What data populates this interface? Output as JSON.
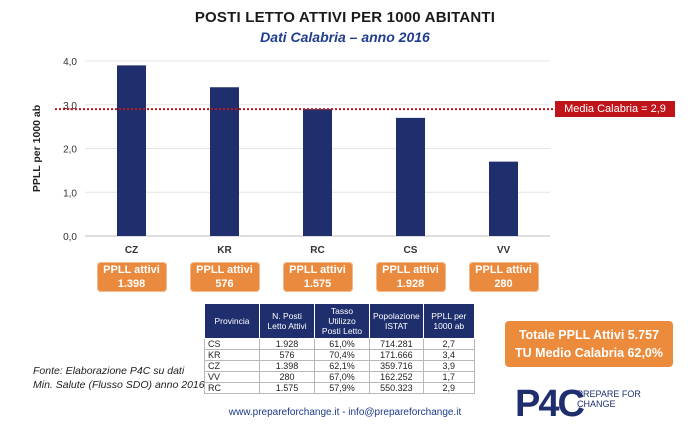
{
  "chart_data": {
    "type": "bar",
    "title": "POSTI LETTO ATTIVI PER 1000 ABITANTI",
    "subtitle": "Dati Calabria – anno 2016",
    "ylabel": "PPLL per 1000 ab",
    "categories": [
      "CZ",
      "KR",
      "RC",
      "CS",
      "VV"
    ],
    "values": [
      3.9,
      3.4,
      2.9,
      2.7,
      1.7
    ],
    "ylim": [
      0,
      4
    ],
    "yticks": [
      "0,0",
      "1,0",
      "2,0",
      "3,0",
      "4,0"
    ],
    "reference_line": {
      "value": 2.9,
      "label": "Media Calabria = 2,9"
    },
    "grid": true,
    "bar_color": "#1f2f6e",
    "reference_color": "#c0141b"
  },
  "pills": [
    {
      "label": "PPLL attivi",
      "value": "1.398"
    },
    {
      "label": "PPLL attivi",
      "value": "576"
    },
    {
      "label": "PPLL attivi",
      "value": "1.575"
    },
    {
      "label": "PPLL attivi",
      "value": "1.928"
    },
    {
      "label": "PPLL attivi",
      "value": "280"
    }
  ],
  "table": {
    "headers": [
      "Provincia",
      "N. Posti Letto Attivi",
      "Tasso Utilizzo Posti Letto",
      "Popolazione ISTAT",
      "PPLL per 1000 ab"
    ],
    "rows": [
      [
        "CS",
        "1.928",
        "61,0%",
        "714.281",
        "2,7"
      ],
      [
        "KR",
        "576",
        "70,4%",
        "171.666",
        "3,4"
      ],
      [
        "CZ",
        "1.398",
        "62,1%",
        "359.716",
        "3,9"
      ],
      [
        "VV",
        "280",
        "67,0%",
        "162.252",
        "1,7"
      ],
      [
        "RC",
        "1.575",
        "57,9%",
        "550.323",
        "2,9"
      ]
    ]
  },
  "source": {
    "line1": "Fonte: Elaborazione P4C su dati",
    "line2": "Min. Salute (Flusso SDO) anno 2016"
  },
  "totale": {
    "line1": "Totale PPLL Attivi 5.757",
    "line2": "TU Medio Calabria 62,0%"
  },
  "footer": "www.prepareforchange.it - info@prepareforchange.it",
  "logo": {
    "mark": "P4C",
    "text": "PREPARE FOR CHANGE"
  },
  "colors": {
    "accent_orange": "#e98a3f",
    "navy": "#1f2f6e",
    "red": "#c0141b"
  }
}
